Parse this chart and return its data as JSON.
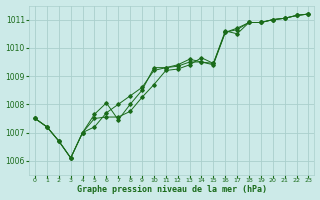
{
  "title": "Graphe pression niveau de la mer (hPa)",
  "background_color": "#cceae8",
  "grid_color": "#aacfcc",
  "line_color": "#1a6b1a",
  "x_labels": [
    "0",
    "1",
    "2",
    "3",
    "4",
    "5",
    "6",
    "7",
    "8",
    "9",
    "10",
    "11",
    "12",
    "13",
    "14",
    "15",
    "16",
    "17",
    "18",
    "19",
    "20",
    "21",
    "22",
    "23"
  ],
  "ylim": [
    1005.5,
    1011.5
  ],
  "yticks": [
    1006,
    1007,
    1008,
    1009,
    1010,
    1011
  ],
  "series": {
    "line1": [
      1007.5,
      1007.2,
      1006.7,
      1006.1,
      1007.0,
      1007.2,
      1007.7,
      1008.0,
      1008.3,
      1008.6,
      1009.2,
      1009.3,
      1009.35,
      1009.5,
      1009.5,
      1009.45,
      1010.55,
      1010.65,
      1010.9,
      1010.9,
      1011.0,
      1011.05,
      1011.15,
      1011.2
    ],
    "line2": [
      1007.5,
      1007.2,
      1006.7,
      1006.1,
      1007.0,
      1007.5,
      1007.55,
      1007.55,
      1007.75,
      1008.25,
      1008.7,
      1009.2,
      1009.25,
      1009.4,
      1009.65,
      1009.45,
      1010.6,
      1010.5,
      1010.9,
      1010.9,
      1011.0,
      1011.05,
      1011.15,
      1011.2
    ],
    "line3": [
      1007.5,
      1007.2,
      1006.7,
      1006.1,
      1007.0,
      1007.65,
      1008.05,
      1007.45,
      1008.0,
      1008.5,
      1009.3,
      1009.3,
      1009.4,
      1009.6,
      1009.5,
      1009.4,
      1010.55,
      1010.7,
      1010.9,
      1010.9,
      1011.0,
      1011.05,
      1011.15,
      1011.2
    ]
  }
}
